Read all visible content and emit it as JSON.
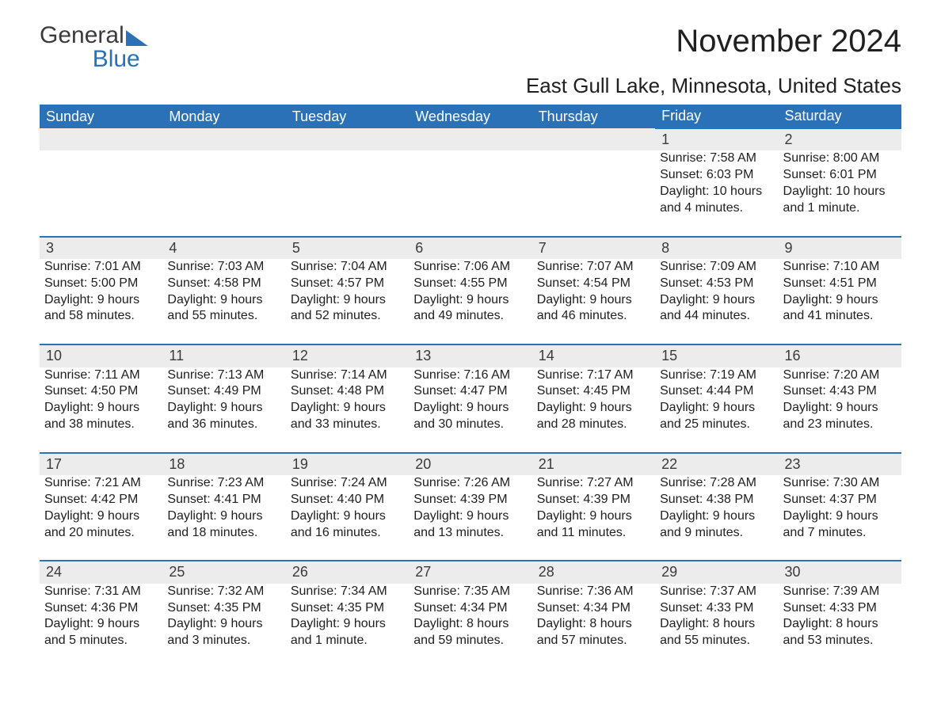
{
  "logo": {
    "general": "General",
    "blue": "Blue"
  },
  "header": {
    "month_title": "November 2024",
    "location": "East Gull Lake, Minnesota, United States"
  },
  "colors": {
    "header_bg": "#2a71b8",
    "header_text": "#ffffff",
    "daynum_bg": "#ececec",
    "daynum_border": "#2a71b8",
    "body_text": "#202020",
    "logo_gray": "#3b3b3b",
    "logo_blue": "#2a71b8",
    "page_bg": "#ffffff"
  },
  "typography": {
    "month_title_fontsize": 40,
    "location_fontsize": 26,
    "weekday_fontsize": 18,
    "daynum_fontsize": 18,
    "cell_fontsize": 16,
    "font_family": "Arial"
  },
  "calendar": {
    "weekdays": [
      "Sunday",
      "Monday",
      "Tuesday",
      "Wednesday",
      "Thursday",
      "Friday",
      "Saturday"
    ],
    "leading_blanks": 5,
    "days": [
      {
        "n": "1",
        "sunrise": "Sunrise: 7:58 AM",
        "sunset": "Sunset: 6:03 PM",
        "d1": "Daylight: 10 hours",
        "d2": "and 4 minutes."
      },
      {
        "n": "2",
        "sunrise": "Sunrise: 8:00 AM",
        "sunset": "Sunset: 6:01 PM",
        "d1": "Daylight: 10 hours",
        "d2": "and 1 minute."
      },
      {
        "n": "3",
        "sunrise": "Sunrise: 7:01 AM",
        "sunset": "Sunset: 5:00 PM",
        "d1": "Daylight: 9 hours",
        "d2": "and 58 minutes."
      },
      {
        "n": "4",
        "sunrise": "Sunrise: 7:03 AM",
        "sunset": "Sunset: 4:58 PM",
        "d1": "Daylight: 9 hours",
        "d2": "and 55 minutes."
      },
      {
        "n": "5",
        "sunrise": "Sunrise: 7:04 AM",
        "sunset": "Sunset: 4:57 PM",
        "d1": "Daylight: 9 hours",
        "d2": "and 52 minutes."
      },
      {
        "n": "6",
        "sunrise": "Sunrise: 7:06 AM",
        "sunset": "Sunset: 4:55 PM",
        "d1": "Daylight: 9 hours",
        "d2": "and 49 minutes."
      },
      {
        "n": "7",
        "sunrise": "Sunrise: 7:07 AM",
        "sunset": "Sunset: 4:54 PM",
        "d1": "Daylight: 9 hours",
        "d2": "and 46 minutes."
      },
      {
        "n": "8",
        "sunrise": "Sunrise: 7:09 AM",
        "sunset": "Sunset: 4:53 PM",
        "d1": "Daylight: 9 hours",
        "d2": "and 44 minutes."
      },
      {
        "n": "9",
        "sunrise": "Sunrise: 7:10 AM",
        "sunset": "Sunset: 4:51 PM",
        "d1": "Daylight: 9 hours",
        "d2": "and 41 minutes."
      },
      {
        "n": "10",
        "sunrise": "Sunrise: 7:11 AM",
        "sunset": "Sunset: 4:50 PM",
        "d1": "Daylight: 9 hours",
        "d2": "and 38 minutes."
      },
      {
        "n": "11",
        "sunrise": "Sunrise: 7:13 AM",
        "sunset": "Sunset: 4:49 PM",
        "d1": "Daylight: 9 hours",
        "d2": "and 36 minutes."
      },
      {
        "n": "12",
        "sunrise": "Sunrise: 7:14 AM",
        "sunset": "Sunset: 4:48 PM",
        "d1": "Daylight: 9 hours",
        "d2": "and 33 minutes."
      },
      {
        "n": "13",
        "sunrise": "Sunrise: 7:16 AM",
        "sunset": "Sunset: 4:47 PM",
        "d1": "Daylight: 9 hours",
        "d2": "and 30 minutes."
      },
      {
        "n": "14",
        "sunrise": "Sunrise: 7:17 AM",
        "sunset": "Sunset: 4:45 PM",
        "d1": "Daylight: 9 hours",
        "d2": "and 28 minutes."
      },
      {
        "n": "15",
        "sunrise": "Sunrise: 7:19 AM",
        "sunset": "Sunset: 4:44 PM",
        "d1": "Daylight: 9 hours",
        "d2": "and 25 minutes."
      },
      {
        "n": "16",
        "sunrise": "Sunrise: 7:20 AM",
        "sunset": "Sunset: 4:43 PM",
        "d1": "Daylight: 9 hours",
        "d2": "and 23 minutes."
      },
      {
        "n": "17",
        "sunrise": "Sunrise: 7:21 AM",
        "sunset": "Sunset: 4:42 PM",
        "d1": "Daylight: 9 hours",
        "d2": "and 20 minutes."
      },
      {
        "n": "18",
        "sunrise": "Sunrise: 7:23 AM",
        "sunset": "Sunset: 4:41 PM",
        "d1": "Daylight: 9 hours",
        "d2": "and 18 minutes."
      },
      {
        "n": "19",
        "sunrise": "Sunrise: 7:24 AM",
        "sunset": "Sunset: 4:40 PM",
        "d1": "Daylight: 9 hours",
        "d2": "and 16 minutes."
      },
      {
        "n": "20",
        "sunrise": "Sunrise: 7:26 AM",
        "sunset": "Sunset: 4:39 PM",
        "d1": "Daylight: 9 hours",
        "d2": "and 13 minutes."
      },
      {
        "n": "21",
        "sunrise": "Sunrise: 7:27 AM",
        "sunset": "Sunset: 4:39 PM",
        "d1": "Daylight: 9 hours",
        "d2": "and 11 minutes."
      },
      {
        "n": "22",
        "sunrise": "Sunrise: 7:28 AM",
        "sunset": "Sunset: 4:38 PM",
        "d1": "Daylight: 9 hours",
        "d2": "and 9 minutes."
      },
      {
        "n": "23",
        "sunrise": "Sunrise: 7:30 AM",
        "sunset": "Sunset: 4:37 PM",
        "d1": "Daylight: 9 hours",
        "d2": "and 7 minutes."
      },
      {
        "n": "24",
        "sunrise": "Sunrise: 7:31 AM",
        "sunset": "Sunset: 4:36 PM",
        "d1": "Daylight: 9 hours",
        "d2": "and 5 minutes."
      },
      {
        "n": "25",
        "sunrise": "Sunrise: 7:32 AM",
        "sunset": "Sunset: 4:35 PM",
        "d1": "Daylight: 9 hours",
        "d2": "and 3 minutes."
      },
      {
        "n": "26",
        "sunrise": "Sunrise: 7:34 AM",
        "sunset": "Sunset: 4:35 PM",
        "d1": "Daylight: 9 hours",
        "d2": "and 1 minute."
      },
      {
        "n": "27",
        "sunrise": "Sunrise: 7:35 AM",
        "sunset": "Sunset: 4:34 PM",
        "d1": "Daylight: 8 hours",
        "d2": "and 59 minutes."
      },
      {
        "n": "28",
        "sunrise": "Sunrise: 7:36 AM",
        "sunset": "Sunset: 4:34 PM",
        "d1": "Daylight: 8 hours",
        "d2": "and 57 minutes."
      },
      {
        "n": "29",
        "sunrise": "Sunrise: 7:37 AM",
        "sunset": "Sunset: 4:33 PM",
        "d1": "Daylight: 8 hours",
        "d2": "and 55 minutes."
      },
      {
        "n": "30",
        "sunrise": "Sunrise: 7:39 AM",
        "sunset": "Sunset: 4:33 PM",
        "d1": "Daylight: 8 hours",
        "d2": "and 53 minutes."
      }
    ]
  }
}
